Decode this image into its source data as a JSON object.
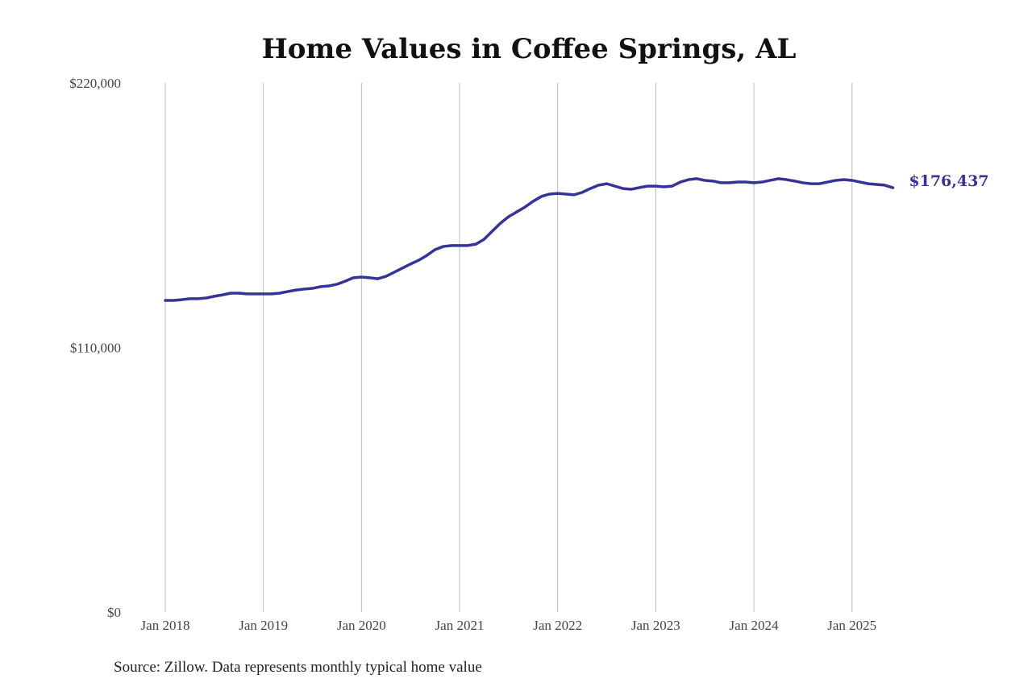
{
  "chart_data": {
    "type": "line",
    "title": "Home Values in Coffee Springs, AL",
    "source": "Source: Zillow. Data represents monthly typical home value",
    "x": [
      "2018-01",
      "2018-02",
      "2018-03",
      "2018-04",
      "2018-05",
      "2018-06",
      "2018-07",
      "2018-08",
      "2018-09",
      "2018-10",
      "2018-11",
      "2018-12",
      "2019-01",
      "2019-02",
      "2019-03",
      "2019-04",
      "2019-05",
      "2019-06",
      "2019-07",
      "2019-08",
      "2019-09",
      "2019-10",
      "2019-11",
      "2019-12",
      "2020-01",
      "2020-02",
      "2020-03",
      "2020-04",
      "2020-05",
      "2020-06",
      "2020-07",
      "2020-08",
      "2020-09",
      "2020-10",
      "2020-11",
      "2020-12",
      "2021-01",
      "2021-02",
      "2021-03",
      "2021-04",
      "2021-05",
      "2021-06",
      "2021-07",
      "2021-08",
      "2021-09",
      "2021-10",
      "2021-11",
      "2021-12",
      "2022-01",
      "2022-02",
      "2022-03",
      "2022-04",
      "2022-05",
      "2022-06",
      "2022-07",
      "2022-08",
      "2022-09",
      "2022-10",
      "2022-11",
      "2022-12",
      "2023-01",
      "2023-02",
      "2023-03",
      "2023-04",
      "2023-05",
      "2023-06",
      "2023-07",
      "2023-08",
      "2023-09",
      "2023-10",
      "2023-11",
      "2023-12",
      "2024-01",
      "2024-02",
      "2024-03",
      "2024-04",
      "2024-05",
      "2024-06",
      "2024-07",
      "2024-08",
      "2024-09",
      "2024-10",
      "2024-11",
      "2024-12",
      "2025-01",
      "2025-02",
      "2025-03",
      "2025-04",
      "2025-05",
      "2025-06"
    ],
    "series": [
      {
        "color": "#35329a",
        "values": [
          129600,
          129600,
          129900,
          130300,
          130300,
          130600,
          131300,
          131900,
          132600,
          132600,
          132300,
          132300,
          132300,
          132300,
          132600,
          133300,
          133900,
          134300,
          134600,
          135300,
          135600,
          136300,
          137600,
          139000,
          139300,
          139000,
          138600,
          139600,
          141300,
          143000,
          144700,
          146300,
          148300,
          150700,
          152000,
          152400,
          152400,
          152400,
          153000,
          155000,
          158400,
          161700,
          164400,
          166400,
          168400,
          170800,
          172800,
          173800,
          174100,
          173800,
          173500,
          174500,
          176100,
          177500,
          178100,
          177100,
          176100,
          175800,
          176500,
          177100,
          177100,
          176800,
          177100,
          178800,
          179800,
          180200,
          179500,
          179200,
          178500,
          178500,
          178800,
          178800,
          178500,
          178800,
          179500,
          180200,
          179800,
          179200,
          178500,
          178100,
          178100,
          178800,
          179500,
          179800,
          179500,
          178800,
          178100,
          177800,
          177500,
          176437
        ],
        "value_labels": [
          null,
          null,
          null,
          null,
          null,
          null,
          null,
          null,
          null,
          null,
          null,
          null,
          null,
          null,
          null,
          null,
          null,
          null,
          null,
          null,
          null,
          null,
          null,
          null,
          null,
          null,
          null,
          null,
          null,
          null,
          null,
          null,
          null,
          null,
          null,
          null,
          null,
          null,
          null,
          null,
          null,
          null,
          null,
          null,
          null,
          null,
          null,
          null,
          null,
          null,
          null,
          null,
          null,
          null,
          null,
          null,
          null,
          null,
          null,
          null,
          null,
          null,
          null,
          null,
          null,
          null,
          null,
          null,
          null,
          null,
          null,
          null,
          null,
          null,
          null,
          null,
          null,
          null,
          null,
          null,
          null,
          null,
          null,
          null,
          null,
          null,
          null,
          null,
          null,
          "$176,437"
        ]
      }
    ],
    "xlim": [
      "2018-01",
      "2025-06"
    ],
    "xticks": [
      {
        "value": "2018-01",
        "label": "Jan 2018"
      },
      {
        "value": "2019-01",
        "label": "Jan 2019"
      },
      {
        "value": "2020-01",
        "label": "Jan 2020"
      },
      {
        "value": "2021-01",
        "label": "Jan 2021"
      },
      {
        "value": "2022-01",
        "label": "Jan 2022"
      },
      {
        "value": "2023-01",
        "label": "Jan 2023"
      },
      {
        "value": "2024-01",
        "label": "Jan 2024"
      },
      {
        "value": "2025-01",
        "label": "Jan 2025"
      }
    ],
    "ylim": [
      0,
      220000
    ],
    "yticks": [
      {
        "value": 0,
        "label": "$0"
      },
      {
        "value": 110000,
        "label": "$110,000"
      },
      {
        "value": 220000,
        "label": "$220,000"
      }
    ],
    "grid": "x"
  }
}
